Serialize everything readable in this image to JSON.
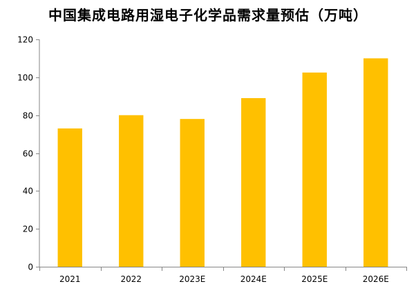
{
  "chart_data": {
    "type": "bar",
    "title": "中国集成电路用湿电子化学品需求量预估（万吨）",
    "categories": [
      "2021",
      "2022",
      "2023E",
      "2024E",
      "2025E",
      "2026E"
    ],
    "values": [
      73,
      80,
      78,
      89,
      102.5,
      110
    ],
    "ylim": [
      0,
      120
    ],
    "yticks": [
      0,
      20,
      40,
      60,
      80,
      100,
      120
    ],
    "xlabel": "",
    "ylabel": "",
    "grid": false,
    "legend": "none",
    "bar_color": "#FFC000",
    "axis_color": "#868686"
  }
}
